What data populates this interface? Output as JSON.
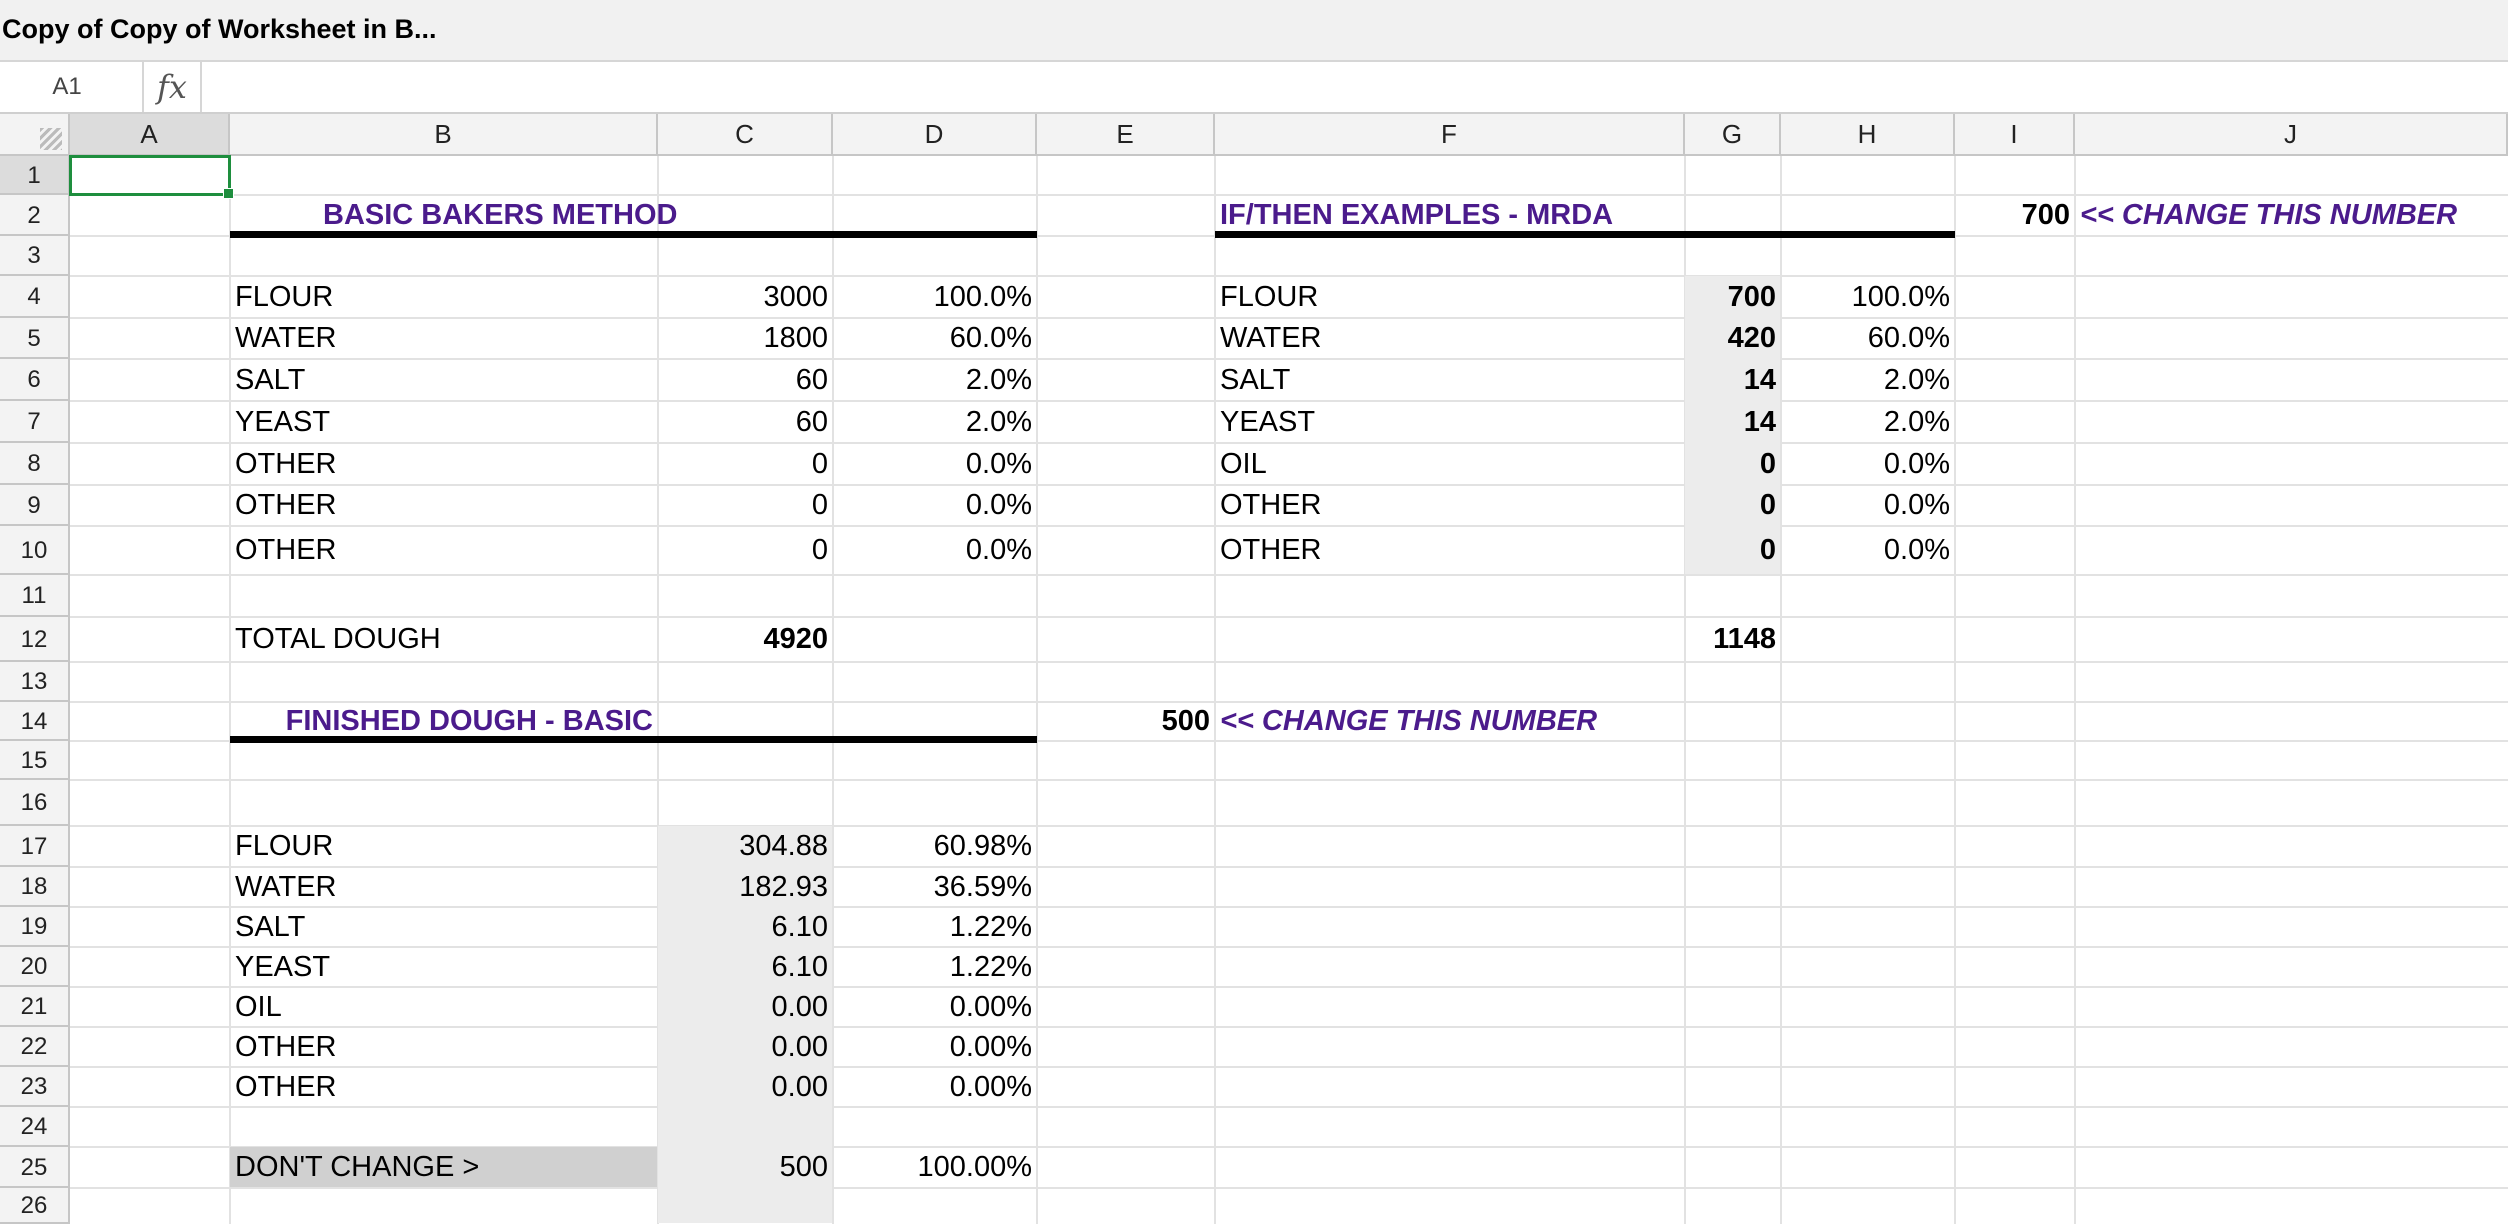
{
  "title": "Copy of Copy of Worksheet in B...",
  "formula_bar": {
    "cell_ref": "A1",
    "fx_label": "fx",
    "formula": ""
  },
  "columns": [
    "A",
    "B",
    "C",
    "D",
    "E",
    "F",
    "G",
    "H",
    "I",
    "J"
  ],
  "rows": [
    "1",
    "2",
    "3",
    "4",
    "5",
    "6",
    "7",
    "8",
    "9",
    "10",
    "11",
    "12",
    "13",
    "14",
    "15",
    "16",
    "17",
    "18",
    "19",
    "20",
    "21",
    "22",
    "23",
    "24",
    "25",
    "26"
  ],
  "basic": {
    "heading": "BASIC BAKERS METHOD",
    "items": [
      {
        "name": "FLOUR",
        "amount": "3000",
        "pct": "100.0%"
      },
      {
        "name": "WATER",
        "amount": "1800",
        "pct": "60.0%"
      },
      {
        "name": "SALT",
        "amount": "60",
        "pct": "2.0%"
      },
      {
        "name": "YEAST",
        "amount": "60",
        "pct": "2.0%"
      },
      {
        "name": "OTHER",
        "amount": "0",
        "pct": "0.0%"
      },
      {
        "name": "OTHER",
        "amount": "0",
        "pct": "0.0%"
      },
      {
        "name": "OTHER",
        "amount": "0",
        "pct": "0.0%"
      }
    ],
    "total_label": "TOTAL DOUGH",
    "total_value": "4920"
  },
  "ifthen": {
    "heading": "IF/THEN EXAMPLES - MRDA",
    "input_value": "700",
    "input_note": "<< CHANGE THIS NUMBER",
    "items": [
      {
        "name": "FLOUR",
        "amount": "700",
        "pct": "100.0%"
      },
      {
        "name": "WATER",
        "amount": "420",
        "pct": "60.0%"
      },
      {
        "name": "SALT",
        "amount": "14",
        "pct": "2.0%"
      },
      {
        "name": "YEAST",
        "amount": "14",
        "pct": "2.0%"
      },
      {
        "name": "OIL",
        "amount": "0",
        "pct": "0.0%"
      },
      {
        "name": "OTHER",
        "amount": "0",
        "pct": "0.0%"
      },
      {
        "name": "OTHER",
        "amount": "0",
        "pct": "0.0%"
      }
    ],
    "total_value": "1148"
  },
  "finished": {
    "heading": "FINISHED DOUGH - BASIC",
    "input_value": "500",
    "input_note": "<< CHANGE THIS NUMBER",
    "items": [
      {
        "name": "FLOUR",
        "amount": "304.88",
        "pct": "60.98%"
      },
      {
        "name": "WATER",
        "amount": "182.93",
        "pct": "36.59%"
      },
      {
        "name": "SALT",
        "amount": "6.10",
        "pct": "1.22%"
      },
      {
        "name": "YEAST",
        "amount": "6.10",
        "pct": "1.22%"
      },
      {
        "name": "OIL",
        "amount": "0.00",
        "pct": "0.00%"
      },
      {
        "name": "OTHER",
        "amount": "0.00",
        "pct": "0.00%"
      },
      {
        "name": "OTHER",
        "amount": "0.00",
        "pct": "0.00%"
      }
    ],
    "dont_change_label": "DON'T CHANGE >",
    "dont_change_value": "500",
    "dont_change_pct": "100.00%"
  }
}
